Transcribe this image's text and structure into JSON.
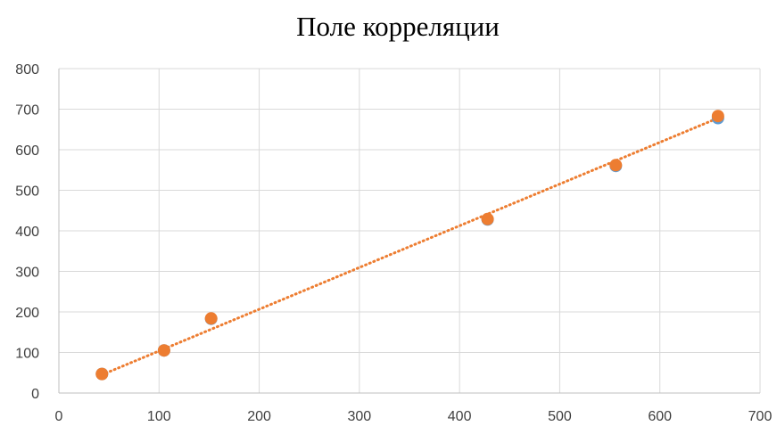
{
  "chart_data": {
    "type": "scatter",
    "title": "Поле корреляции",
    "xlabel": "",
    "ylabel": "",
    "xlim": [
      0,
      700
    ],
    "ylim": [
      0,
      800
    ],
    "x_ticks": [
      0,
      100,
      200,
      300,
      400,
      500,
      600,
      700
    ],
    "y_ticks": [
      0,
      100,
      200,
      300,
      400,
      500,
      600,
      700,
      800
    ],
    "grid": true,
    "legend": "none",
    "series": [
      {
        "color": "#5b9bd5",
        "points": [
          [
            43,
            47
          ],
          [
            105,
            105
          ],
          [
            152,
            183
          ],
          [
            428,
            428
          ],
          [
            556,
            560
          ],
          [
            658,
            678
          ]
        ]
      },
      {
        "color": "#ed7d31",
        "points": [
          [
            43,
            47
          ],
          [
            105,
            105
          ],
          [
            152,
            184
          ],
          [
            428,
            429
          ],
          [
            556,
            562
          ],
          [
            658,
            683
          ]
        ]
      }
    ],
    "trendline": {
      "style": "dotted",
      "color": "#ed7d31",
      "start": [
        43,
        45
      ],
      "end": [
        658,
        678
      ]
    }
  }
}
